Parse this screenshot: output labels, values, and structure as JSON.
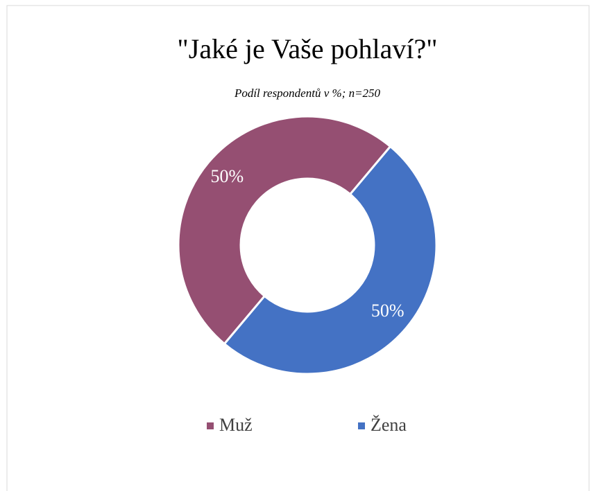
{
  "chart_data": {
    "type": "donut",
    "title": "\"Jaké je Vaše pohlaví?\"",
    "subtitle": "Podíl respondentů v %; n=250",
    "categories": [
      "Muž",
      "Žena"
    ],
    "values": [
      50,
      50
    ],
    "value_labels": [
      "50%",
      "50%"
    ],
    "colors": [
      "#954F72",
      "#4472C4"
    ],
    "legend": "bottom"
  }
}
